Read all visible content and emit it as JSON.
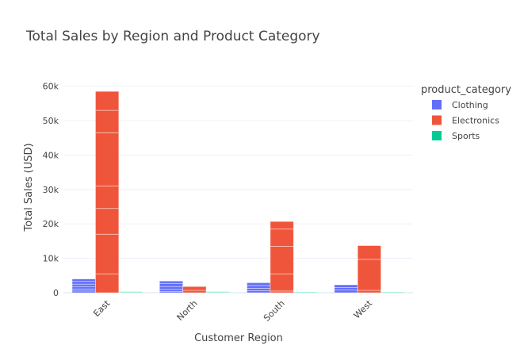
{
  "chart_data": {
    "type": "bar",
    "barmode": "group",
    "title": "Total Sales by Region and Product Category",
    "xlabel": "Customer Region",
    "ylabel": "Total Sales (USD)",
    "categories": [
      "East",
      "North",
      "South",
      "West"
    ],
    "ylim": [
      0,
      62000
    ],
    "yticks": [
      0,
      10000,
      20000,
      30000,
      40000,
      50000,
      60000
    ],
    "ytick_labels": [
      "0",
      "10k",
      "20k",
      "30k",
      "40k",
      "50k",
      "60k"
    ],
    "grid": true,
    "legend_title": "product_category",
    "legend_position": "top-right",
    "series": [
      {
        "name": "Clothing",
        "color": "#636efa",
        "segments": [
          [
            500,
            600,
            700,
            700,
            800,
            700
          ],
          [
            400,
            600,
            800,
            900,
            700
          ],
          [
            600,
            700,
            800,
            800
          ],
          [
            800,
            700,
            800
          ]
        ]
      },
      {
        "name": "Electronics",
        "color": "#ef553b",
        "segments": [
          [
            5500,
            11500,
            7500,
            6500,
            15500,
            6500,
            5500
          ],
          [
            700,
            1100
          ],
          [
            500,
            5000,
            8000,
            5000,
            2200
          ],
          [
            700,
            9000,
            4000
          ]
        ]
      },
      {
        "name": "Sports",
        "color": "#00cc96",
        "segments": [
          [
            150,
            150
          ],
          [
            150,
            150
          ],
          [
            120,
            100
          ],
          [
            100,
            100
          ]
        ]
      }
    ]
  }
}
